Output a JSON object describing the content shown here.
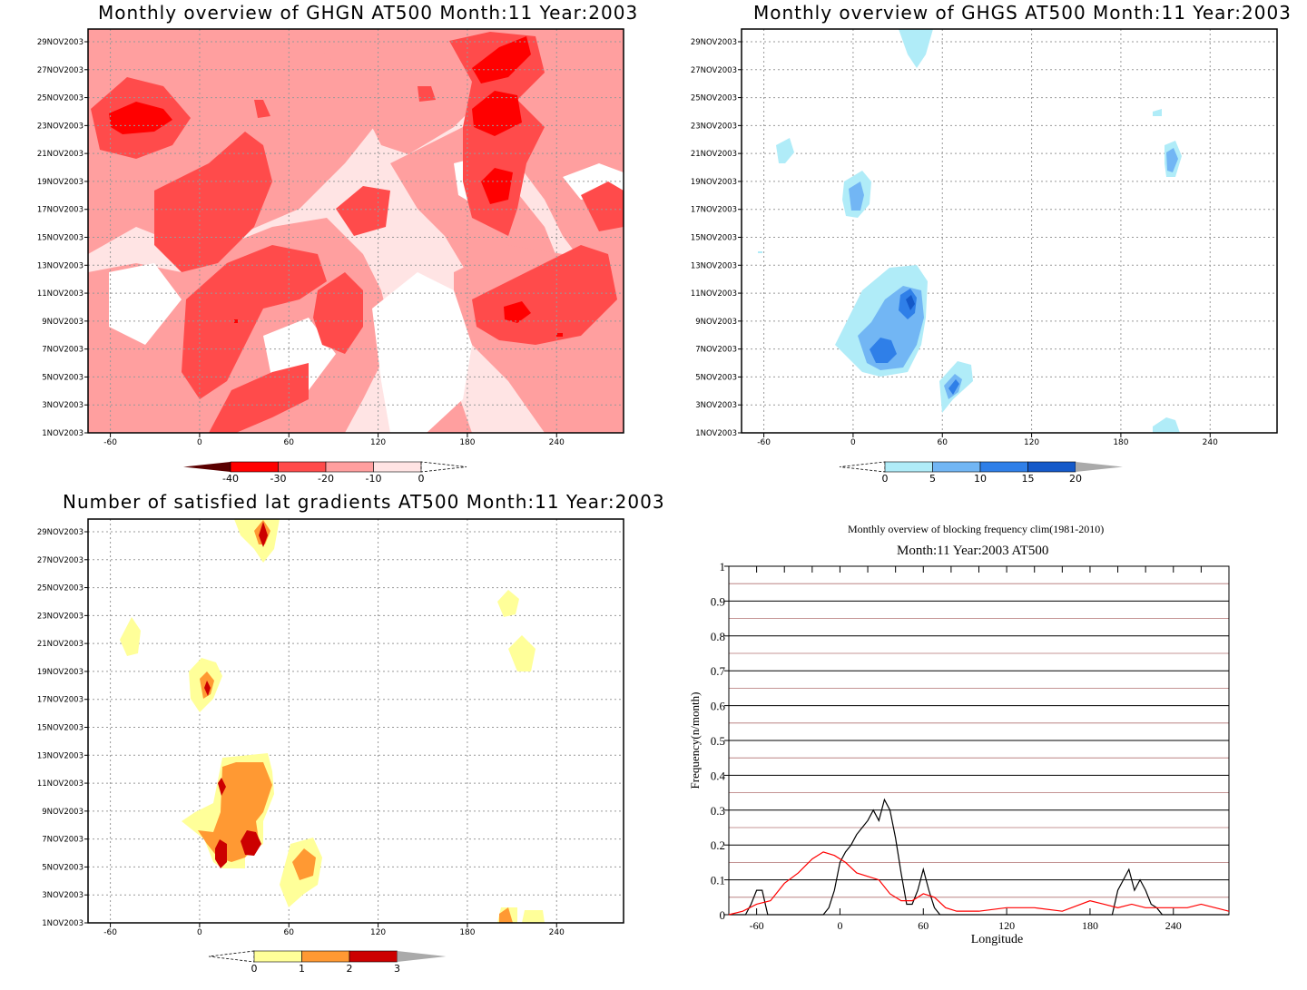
{
  "chart_data": [
    {
      "type": "heatmap",
      "title": "Monthly overview of GHGN AT500 Month:11 Year:2003",
      "xticks": [
        -60,
        0,
        60,
        120,
        180,
        240
      ],
      "xlim": [
        -75,
        285
      ],
      "yticks": [
        "1NOV2003",
        "3NOV2003",
        "5NOV2003",
        "7NOV2003",
        "9NOV2003",
        "11NOV2003",
        "13NOV2003",
        "15NOV2003",
        "17NOV2003",
        "19NOV2003",
        "21NOV2003",
        "23NOV2003",
        "25NOV2003",
        "27NOV2003",
        "29NOV2003"
      ],
      "colorbar": {
        "levels": [
          -40,
          -30,
          -20,
          -10,
          0
        ],
        "colors": [
          "#5a0000",
          "#ff0000",
          "#ff4b4b",
          "#ff9f9f",
          "#ffe4e4"
        ],
        "labels": [
          "-40",
          "-30",
          "-20",
          "-10",
          "0"
        ]
      },
      "fill": "#ffe4e4"
    },
    {
      "type": "heatmap",
      "title": "Monthly overview of GHGS AT500 Month:11 Year:2003",
      "xticks": [
        -60,
        0,
        60,
        120,
        180,
        240
      ],
      "xlim": [
        -75,
        285
      ],
      "yticks": [
        "1NOV2003",
        "3NOV2003",
        "5NOV2003",
        "7NOV2003",
        "9NOV2003",
        "11NOV2003",
        "13NOV2003",
        "15NOV2003",
        "17NOV2003",
        "19NOV2003",
        "21NOV2003",
        "23NOV2003",
        "25NOV2003",
        "27NOV2003",
        "29NOV2003"
      ],
      "colorbar": {
        "levels": [
          0,
          5,
          10,
          15,
          20
        ],
        "colors": [
          "#b0ecf8",
          "#72b6f4",
          "#2f7fe8",
          "#1459c9"
        ],
        "labels": [
          "0",
          "5",
          "10",
          "15",
          "20"
        ]
      }
    },
    {
      "type": "heatmap",
      "title": "Number of satisfied lat gradients AT500 Month:11 Year:2003",
      "xticks": [
        -60,
        0,
        60,
        120,
        180,
        240
      ],
      "xlim": [
        -75,
        285
      ],
      "yticks": [
        "1NOV2003",
        "3NOV2003",
        "5NOV2003",
        "7NOV2003",
        "9NOV2003",
        "11NOV2003",
        "13NOV2003",
        "15NOV2003",
        "17NOV2003",
        "19NOV2003",
        "21NOV2003",
        "23NOV2003",
        "25NOV2003",
        "27NOV2003",
        "29NOV2003"
      ],
      "colorbar": {
        "levels": [
          0,
          1,
          2,
          3
        ],
        "colors": [
          "#ffff99",
          "#ff9933",
          "#cc0000"
        ],
        "labels": [
          "0",
          "1",
          "2",
          "3"
        ]
      }
    },
    {
      "type": "line",
      "title": "Monthly overview of blocking frequency clim(1981-2010)",
      "subtitle": "Month:11 Year:2003  AT500",
      "xlabel": "Longitude",
      "ylabel": "Frequency(n/month)",
      "xlim": [
        -80,
        280
      ],
      "ylim": [
        0,
        1
      ],
      "xticks": [
        -60,
        0,
        60,
        120,
        180,
        240
      ],
      "yticks": [
        "0",
        "0.1",
        "0.2",
        "0.3",
        "0.4",
        "0.5",
        "0.6",
        "0.7",
        "0.8",
        "0.9",
        "1"
      ],
      "grid": true,
      "series": [
        {
          "color": "#000000",
          "x": [
            -80,
            -68,
            -64,
            -60,
            -56,
            -52,
            -48,
            -44,
            -40,
            -36,
            -32,
            -28,
            -24,
            -20,
            -16,
            -12,
            -8,
            -4,
            0,
            4,
            8,
            12,
            16,
            20,
            24,
            28,
            32,
            36,
            40,
            44,
            48,
            52,
            56,
            60,
            64,
            68,
            72,
            76,
            80,
            100,
            150,
            180,
            196,
            200,
            204,
            208,
            212,
            216,
            220,
            224,
            228,
            232,
            236,
            240,
            260,
            280
          ],
          "y": [
            0,
            0,
            0.03,
            0.07,
            0.07,
            0,
            0,
            0,
            0,
            0,
            0,
            0,
            0,
            0,
            0,
            0,
            0.02,
            0.07,
            0.15,
            0.18,
            0.2,
            0.23,
            0.25,
            0.27,
            0.3,
            0.27,
            0.33,
            0.3,
            0.22,
            0.12,
            0.03,
            0.03,
            0.07,
            0.13,
            0.07,
            0.02,
            0,
            0,
            0,
            0,
            0,
            0,
            0,
            0.07,
            0.1,
            0.13,
            0.07,
            0.1,
            0.07,
            0.03,
            0.02,
            0,
            0,
            0,
            0,
            0
          ]
        },
        {
          "color": "#ff0000",
          "x": [
            -80,
            -70,
            -60,
            -50,
            -40,
            -30,
            -20,
            -12,
            -4,
            4,
            12,
            20,
            28,
            36,
            44,
            52,
            60,
            68,
            76,
            84,
            100,
            120,
            140,
            160,
            180,
            190,
            200,
            210,
            220,
            230,
            240,
            250,
            260,
            270,
            280
          ],
          "y": [
            0,
            0.01,
            0.03,
            0.04,
            0.09,
            0.12,
            0.16,
            0.18,
            0.17,
            0.15,
            0.12,
            0.11,
            0.1,
            0.06,
            0.04,
            0.04,
            0.06,
            0.05,
            0.02,
            0.01,
            0.01,
            0.02,
            0.02,
            0.01,
            0.04,
            0.03,
            0.02,
            0.03,
            0.02,
            0.02,
            0.02,
            0.02,
            0.03,
            0.02,
            0.01
          ]
        }
      ]
    }
  ]
}
